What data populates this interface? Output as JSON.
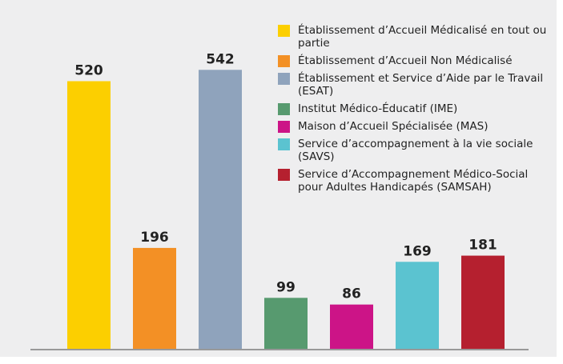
{
  "chart_data": {
    "type": "bar",
    "categories": [
      "Établissement d’Accueil Médicalisé en tout ou partie",
      "Établissement d’Accueil Non Médicalisé",
      "Établissement et Service d’Aide par le Travail (ESAT)",
      "Institut Médico-Éducatif (IME)",
      "Maison d’Accueil Spécialisée (MAS)",
      "Service d’accompagnement à la vie sociale (SAVS)",
      "Service d’Accompagnement Médico-Social pour Adultes Handicapés (SAMSAH)"
    ],
    "values": [
      520,
      196,
      542,
      99,
      86,
      169,
      181
    ],
    "colors": [
      "#fccf00",
      "#f39025",
      "#8fa3bc",
      "#579a6f",
      "#cc1487",
      "#5bc3d0",
      "#b5202f"
    ],
    "ylim": [
      0,
      600
    ],
    "legend": "top-right"
  }
}
